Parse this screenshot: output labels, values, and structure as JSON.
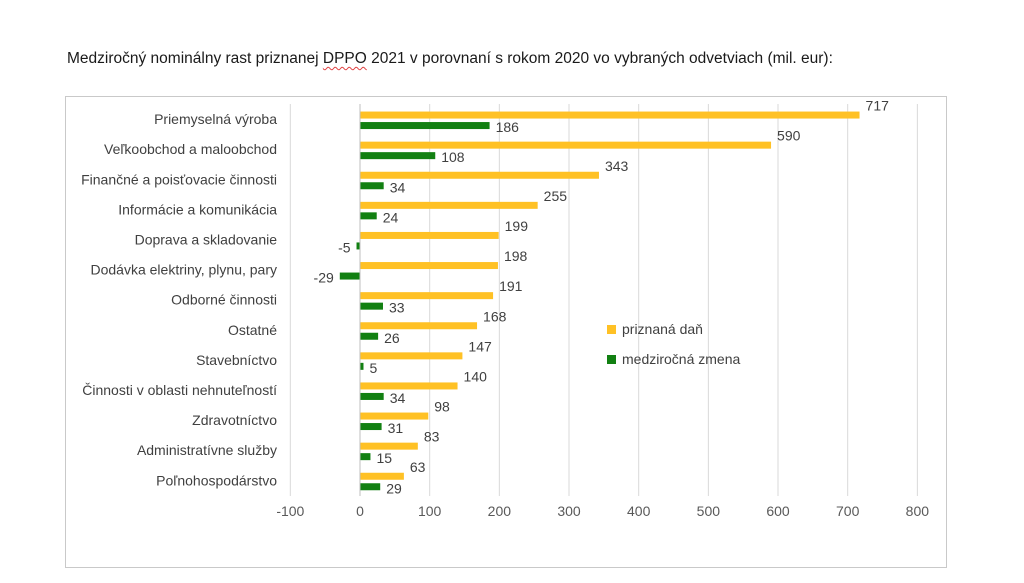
{
  "title": {
    "before": "Medziročný nominálny rast priznanej ",
    "underlined": "DPPO",
    "after": " 2021 v porovnaní s rokom 2020 vo vybraných odvetviach (mil. eur):"
  },
  "chart_data": {
    "type": "bar",
    "orientation": "horizontal",
    "categories": [
      "Priemyselná výroba",
      "Veľkoobchod a maloobchod",
      "Finančné a poisťovacie činnosti",
      "Informácie a komunikácia",
      "Doprava a skladovanie",
      "Dodávka elektriny, plynu, pary",
      "Odborné činnosti",
      "Ostatné",
      "Stavebníctvo",
      "Činnosti v oblasti nehnuteľností",
      "Zdravotníctvo",
      "Administratívne služby",
      "Poľnohospodárstvo"
    ],
    "series": [
      {
        "name": "priznaná daň",
        "color": "#FFC125",
        "values": [
          717,
          590,
          343,
          255,
          199,
          198,
          191,
          168,
          147,
          140,
          98,
          83,
          63
        ]
      },
      {
        "name": "medziročná zmena",
        "color": "#128012",
        "values": [
          186,
          108,
          34,
          24,
          -5,
          -29,
          33,
          26,
          5,
          34,
          31,
          15,
          29
        ]
      }
    ],
    "xlim": [
      -100,
      800
    ],
    "xticks": [
      -100,
      0,
      100,
      200,
      300,
      400,
      500,
      600,
      700,
      800
    ],
    "grid": true,
    "legend_position": "right-middle",
    "title": "Medziročný nominálny rast priznanej DPPO 2021 v porovnaní s rokom 2020 vo vybraných odvetviach (mil. eur):"
  }
}
